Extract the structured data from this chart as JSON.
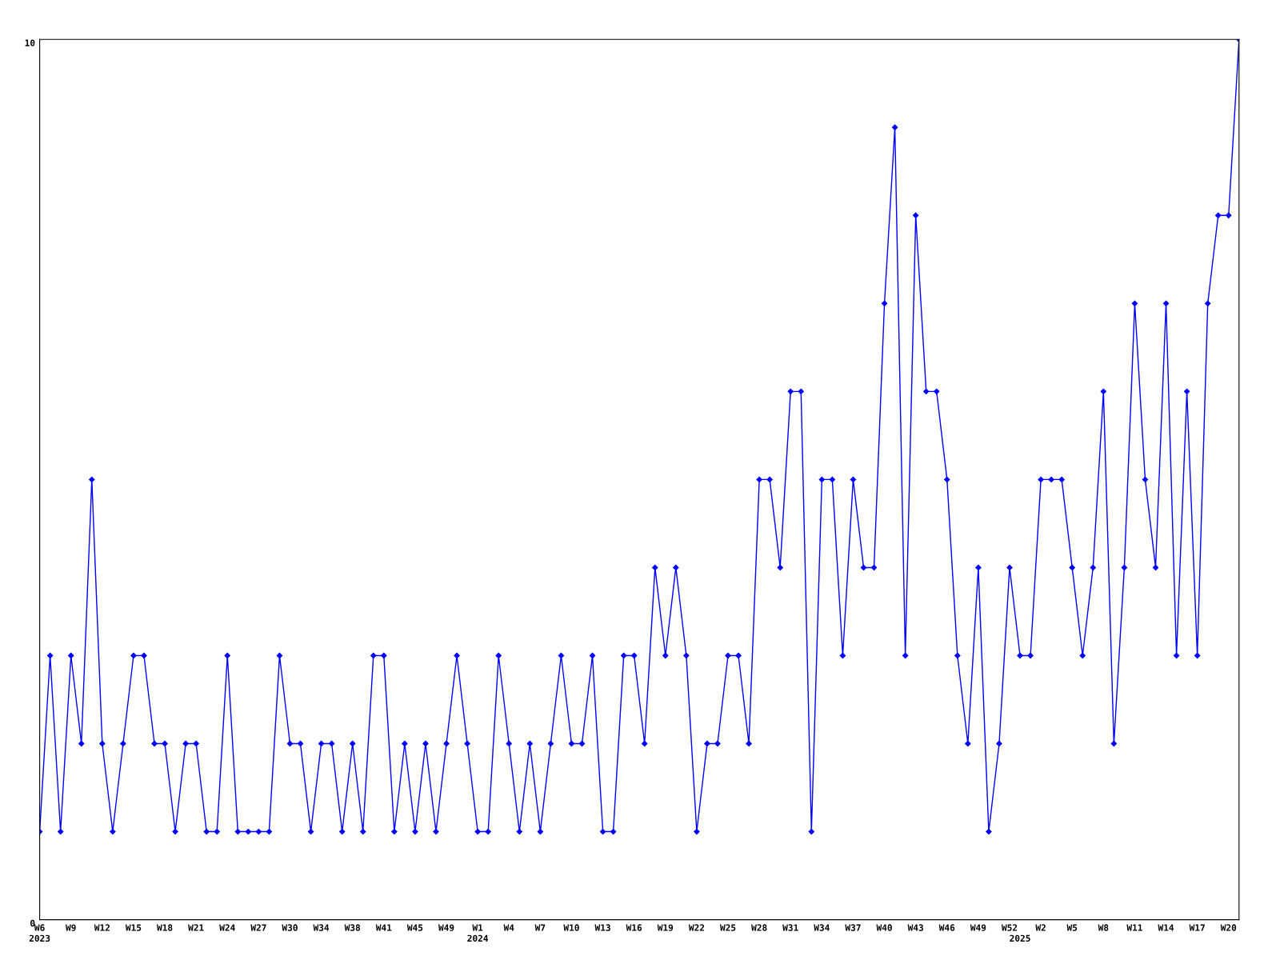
{
  "chart_data": {
    "type": "line",
    "categories": [
      "W6\n2023",
      null,
      null,
      "W9",
      null,
      null,
      "W12",
      null,
      null,
      "W15",
      null,
      null,
      "W18",
      null,
      null,
      "W21",
      null,
      null,
      "W24",
      null,
      null,
      "W27",
      null,
      null,
      "W30",
      null,
      null,
      "W34",
      null,
      null,
      "W38",
      null,
      null,
      "W41",
      null,
      null,
      "W45",
      null,
      null,
      "W49",
      null,
      null,
      "W1\n2024",
      null,
      null,
      "W4",
      null,
      null,
      "W7",
      null,
      null,
      "W10",
      null,
      null,
      "W13",
      null,
      null,
      "W16",
      null,
      null,
      "W19",
      null,
      null,
      "W22",
      null,
      null,
      "W25",
      null,
      null,
      "W28",
      null,
      null,
      "W31",
      null,
      null,
      "W34",
      null,
      null,
      "W37",
      null,
      null,
      "W40",
      null,
      null,
      "W43",
      null,
      null,
      "W46",
      null,
      null,
      "W49",
      null,
      null,
      "W52",
      "\n2025",
      null,
      "W2",
      null,
      null,
      "W5",
      null,
      null,
      "W8",
      null,
      null,
      "W11",
      null,
      null,
      "W14",
      null,
      null,
      "W17",
      null,
      null,
      "W20",
      null
    ],
    "series": [
      {
        "color": "#0000ff",
        "values": [
          1,
          3,
          1,
          3,
          2,
          5,
          2,
          1,
          2,
          3,
          3,
          2,
          2,
          1,
          2,
          2,
          1,
          1,
          3,
          1,
          1,
          1,
          1,
          3,
          2,
          2,
          1,
          2,
          2,
          1,
          2,
          1,
          3,
          3,
          1,
          2,
          1,
          2,
          1,
          2,
          3,
          2,
          1,
          1,
          3,
          2,
          1,
          2,
          1,
          2,
          3,
          2,
          2,
          3,
          1,
          1,
          3,
          3,
          2,
          4,
          3,
          4,
          3,
          1,
          2,
          2,
          3,
          3,
          2,
          5,
          5,
          4,
          6,
          6,
          1,
          5,
          5,
          3,
          5,
          4,
          4,
          7,
          9,
          3,
          8,
          6,
          6,
          5,
          3,
          2,
          4,
          1,
          2,
          4,
          3,
          3,
          5,
          5,
          5,
          4,
          3,
          4,
          6,
          2,
          4,
          7,
          5,
          4,
          7,
          3,
          6,
          3,
          7,
          8,
          8,
          10
        ]
      }
    ],
    "ylim": [
      0,
      10
    ],
    "yticks": [
      0,
      10
    ],
    "grid": false,
    "marker": "diamond",
    "line_style": "solid"
  }
}
